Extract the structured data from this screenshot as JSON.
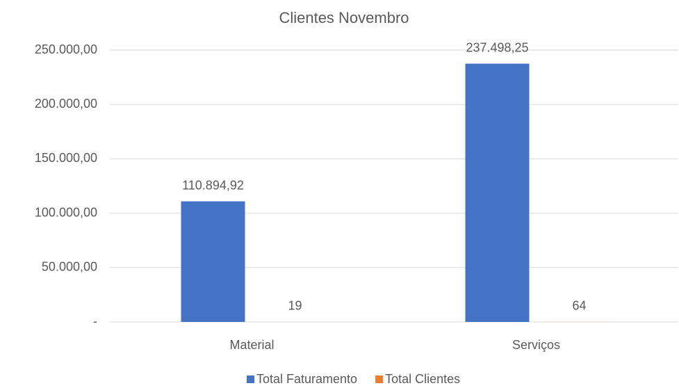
{
  "chart_data": {
    "type": "bar",
    "title": "Clientes Novembro",
    "categories": [
      "Material",
      "Serviços"
    ],
    "series": [
      {
        "name": "Total Faturamento",
        "color": "#4472c4",
        "values": [
          110894.92,
          237498.25
        ],
        "value_labels": [
          "110.894,92",
          "237.498,25"
        ]
      },
      {
        "name": "Total Clientes",
        "color": "#ed7d31",
        "values": [
          19,
          64
        ]
      }
    ],
    "ylim": [
      0,
      250000
    ],
    "yticks": [
      {
        "value": 0,
        "label": "-"
      },
      {
        "value": 50000,
        "label": "50.000,00"
      },
      {
        "value": 100000,
        "label": "100.000,00"
      },
      {
        "value": 150000,
        "label": "150.000,00"
      },
      {
        "value": 200000,
        "label": "200.000,00"
      },
      {
        "value": 250000,
        "label": "250.000,00"
      }
    ],
    "grid": true,
    "legend": "bottom"
  }
}
